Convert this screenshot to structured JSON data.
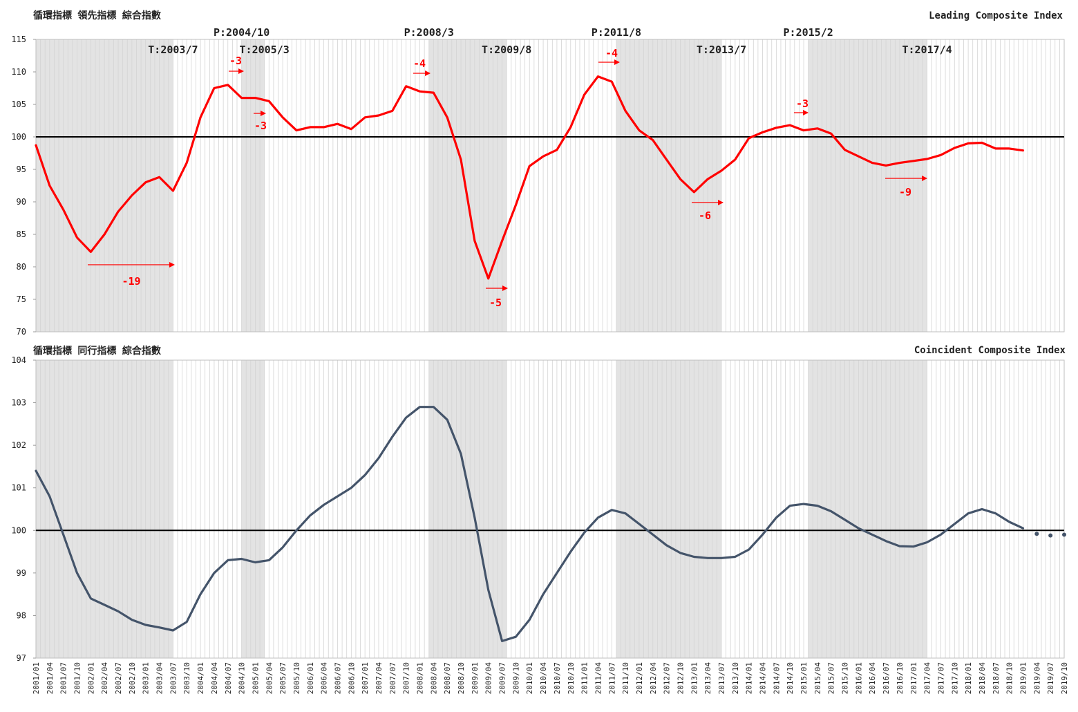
{
  "chart_data": [
    {
      "type": "line",
      "title": "循環指標 領先指標 綜合指數",
      "title_en": "Leading Composite Index",
      "series": [
        {
          "color": "#ff0000",
          "values": [
            98.7,
            92.5,
            88.8,
            84.5,
            82.3,
            85,
            88.5,
            91,
            93,
            93.8,
            91.7,
            96,
            103,
            107.5,
            108,
            106,
            106,
            105.5,
            103,
            101,
            101.5,
            101.5,
            102,
            101.2,
            103,
            103.3,
            104,
            107.8,
            107,
            106.8,
            103,
            96.5,
            84,
            78.2,
            84,
            89.5,
            95.5,
            97,
            98,
            101.5,
            106.5,
            109.3,
            108.5,
            104,
            101,
            99.5,
            96.5,
            93.5,
            91.5,
            93.5,
            94.8,
            96.5,
            99.8,
            100.7,
            101.4,
            101.8,
            101,
            101.3,
            100.5,
            98,
            97,
            96,
            95.6,
            96,
            96.3,
            96.6,
            97.2,
            98.3,
            99,
            99.1,
            98.2,
            98.2,
            97.9,
            null,
            null,
            null
          ]
        }
      ],
      "ylim": [
        70,
        115
      ],
      "yticks": [
        70,
        75,
        80,
        85,
        90,
        95,
        100,
        105,
        110,
        115
      ],
      "hline": 100,
      "turning_points": [
        "T:2003/7",
        "P:2004/10",
        "T:2005/3",
        "P:2008/3",
        "T:2009/8",
        "P:2011/8",
        "T:2013/7",
        "P:2015/2",
        "T:2017/4"
      ],
      "lead_labels": [
        -19,
        -3,
        -3,
        -4,
        -5,
        -4,
        -6,
        -3,
        -9
      ],
      "lead_color": "#ff0000"
    },
    {
      "type": "line",
      "title": "循環指標 同行指標 綜合指數",
      "title_en": "Coincident Composite Index",
      "categories": [
        "2001/01",
        "2001/04",
        "2001/07",
        "2001/10",
        "2002/01",
        "2002/04",
        "2002/07",
        "2002/10",
        "2003/01",
        "2003/04",
        "2003/07",
        "2003/10",
        "2004/01",
        "2004/04",
        "2004/07",
        "2004/10",
        "2005/01",
        "2005/04",
        "2005/07",
        "2005/10",
        "2006/01",
        "2006/04",
        "2006/07",
        "2006/10",
        "2007/01",
        "2007/04",
        "2007/07",
        "2007/10",
        "2008/01",
        "2008/04",
        "2008/07",
        "2008/10",
        "2009/01",
        "2009/04",
        "2009/07",
        "2009/10",
        "2010/01",
        "2010/04",
        "2010/07",
        "2010/10",
        "2011/01",
        "2011/04",
        "2011/07",
        "2011/10",
        "2012/01",
        "2012/04",
        "2012/07",
        "2012/10",
        "2013/01",
        "2013/04",
        "2013/07",
        "2013/10",
        "2014/01",
        "2014/04",
        "2014/07",
        "2014/10",
        "2015/01",
        "2015/04",
        "2015/07",
        "2015/10",
        "2016/01",
        "2016/04",
        "2016/07",
        "2016/10",
        "2017/01",
        "2017/04",
        "2017/07",
        "2017/10",
        "2018/01",
        "2018/04",
        "2018/07",
        "2018/10",
        "2019/01",
        "2019/04",
        "2019/07",
        "2019/10"
      ],
      "series": [
        {
          "color": "#44546a",
          "values": [
            101.4,
            100.8,
            99.9,
            99,
            98.4,
            98.25,
            98.1,
            97.9,
            97.78,
            97.72,
            97.65,
            97.85,
            98.5,
            99,
            99.3,
            99.33,
            99.25,
            99.3,
            99.6,
            100,
            100.35,
            100.6,
            100.8,
            101,
            101.3,
            101.7,
            102.2,
            102.65,
            102.9,
            102.9,
            102.6,
            101.8,
            100.3,
            98.6,
            97.4,
            97.5,
            97.9,
            98.5,
            99,
            99.5,
            99.95,
            100.3,
            100.48,
            100.4,
            100.15,
            99.9,
            99.65,
            99.47,
            99.38,
            99.35,
            99.35,
            99.38,
            99.55,
            99.9,
            100.3,
            100.58,
            100.62,
            100.58,
            100.45,
            100.25,
            100.05,
            99.9,
            99.75,
            99.63,
            99.62,
            99.72,
            99.9,
            100.15,
            100.4,
            100.5,
            100.4,
            100.2,
            100.05,
            null,
            null,
            null
          ]
        },
        {
          "color": "#44546a",
          "style": "dotted",
          "values": [
            null,
            null,
            null,
            null,
            null,
            null,
            null,
            null,
            null,
            null,
            null,
            null,
            null,
            null,
            null,
            null,
            null,
            null,
            null,
            null,
            null,
            null,
            null,
            null,
            null,
            null,
            null,
            null,
            null,
            null,
            null,
            null,
            null,
            null,
            null,
            null,
            null,
            null,
            null,
            null,
            null,
            null,
            null,
            null,
            null,
            null,
            null,
            null,
            null,
            null,
            null,
            null,
            null,
            null,
            null,
            null,
            null,
            null,
            null,
            null,
            null,
            null,
            null,
            null,
            null,
            null,
            null,
            null,
            null,
            null,
            null,
            null,
            null,
            99.92,
            99.88,
            99.9
          ]
        }
      ],
      "ylim": [
        97,
        104
      ],
      "yticks": [
        97,
        98,
        99,
        100,
        101,
        102,
        103,
        104
      ],
      "hline": 100
    }
  ]
}
